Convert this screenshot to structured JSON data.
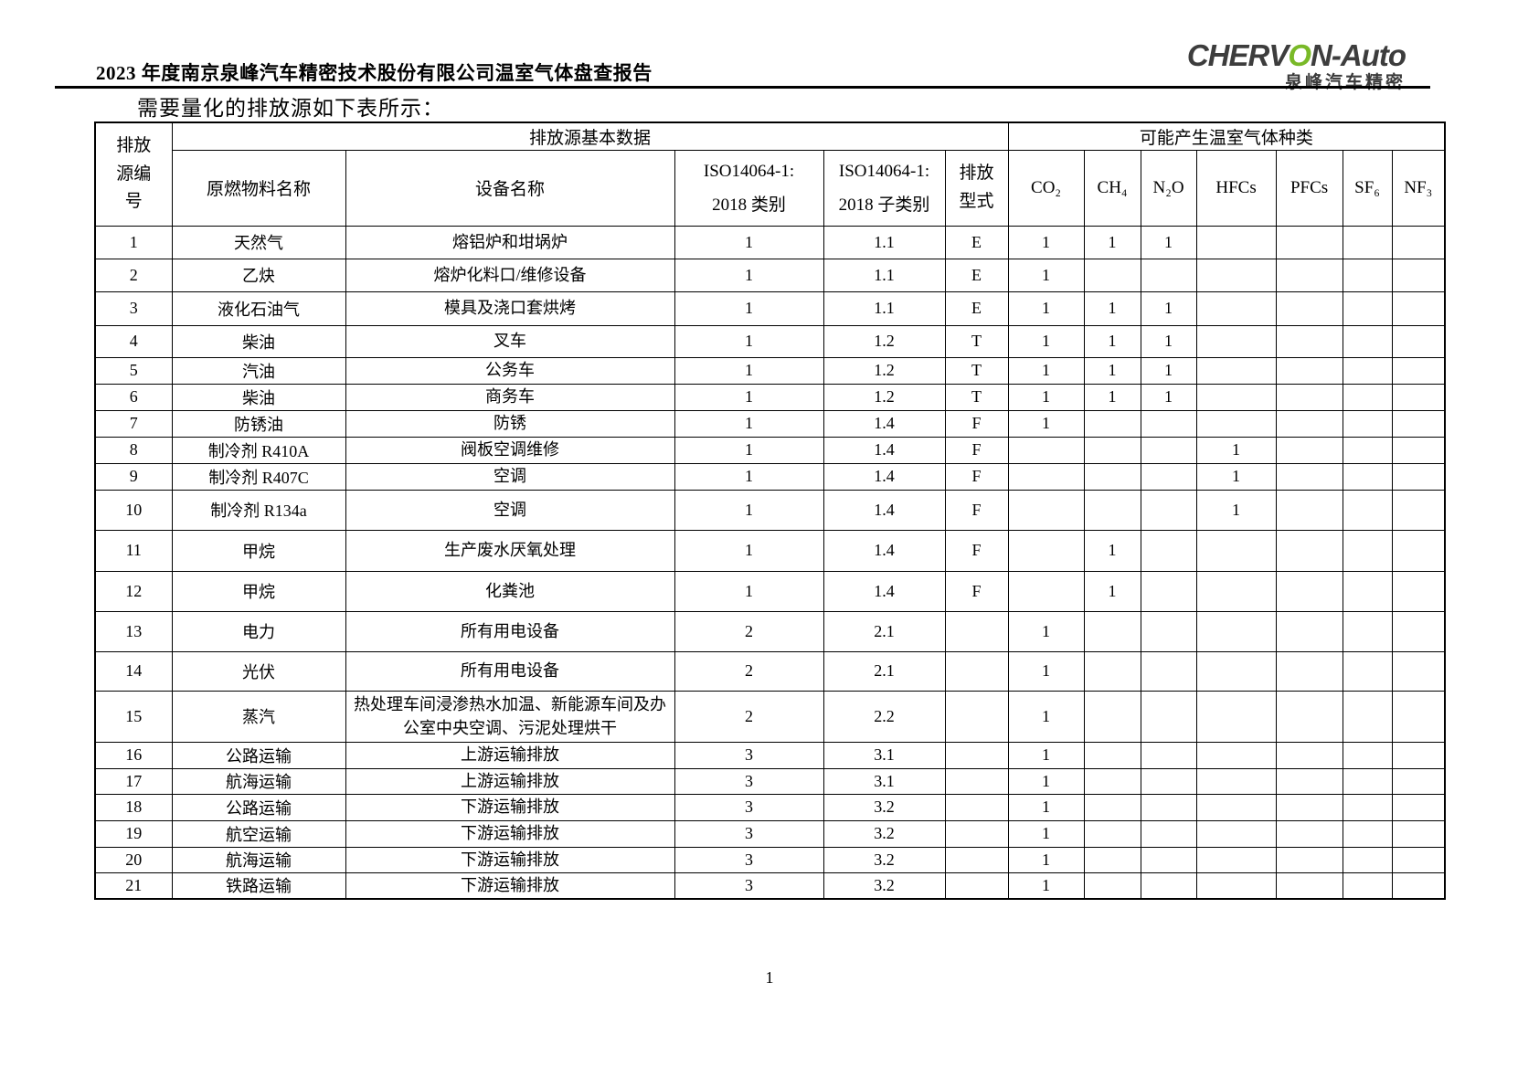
{
  "page": {
    "report_title": "2023 年度南京泉峰汽车精密技术股份有限公司温室气体盘查报告",
    "section_heading": "需要量化的排放源如下表所示：",
    "page_number": "1"
  },
  "logo": {
    "brand_pre": "CHERV",
    "brand_o": "O",
    "brand_post": "N-Auto",
    "subtitle": "泉峰汽车精密",
    "accent_green": "#79b928",
    "text_color": "#3d3d3d"
  },
  "table": {
    "header": {
      "id": "排放源编号",
      "group_basic": "排放源基本数据",
      "group_gases": "可能产生温室气体种类",
      "material": "原燃物料名称",
      "equipment": "设备名称",
      "category_line1": "ISO14064-1:",
      "category_line2": "2018 类别",
      "subcategory_line1": "ISO14064-1:",
      "subcategory_line2": "2018 子类别",
      "emission_type": "排放型式",
      "gases": [
        "CO₂",
        "CH₄",
        "N₂O",
        "HFCs",
        "PFCs",
        "SF₆",
        "NF₃"
      ]
    },
    "rows": [
      [
        "1",
        "天然气",
        "熔铝炉和坩埚炉",
        "1",
        "1.1",
        "E",
        "1",
        "1",
        "1",
        "",
        "",
        "",
        ""
      ],
      [
        "2",
        "乙炔",
        "熔炉化料口/维修设备",
        "1",
        "1.1",
        "E",
        "1",
        "",
        "",
        "",
        "",
        "",
        ""
      ],
      [
        "3",
        "液化石油气",
        "模具及浇口套烘烤",
        "1",
        "1.1",
        "E",
        "1",
        "1",
        "1",
        "",
        "",
        "",
        ""
      ],
      [
        "4",
        "柴油",
        "叉车",
        "1",
        "1.2",
        "T",
        "1",
        "1",
        "1",
        "",
        "",
        "",
        ""
      ],
      [
        "5",
        "汽油",
        "公务车",
        "1",
        "1.2",
        "T",
        "1",
        "1",
        "1",
        "",
        "",
        "",
        ""
      ],
      [
        "6",
        "柴油",
        "商务车",
        "1",
        "1.2",
        "T",
        "1",
        "1",
        "1",
        "",
        "",
        "",
        ""
      ],
      [
        "7",
        "防锈油",
        "防锈",
        "1",
        "1.4",
        "F",
        "1",
        "",
        "",
        "",
        "",
        "",
        ""
      ],
      [
        "8",
        "制冷剂 R410A",
        "阀板空调维修",
        "1",
        "1.4",
        "F",
        "",
        "",
        "",
        "1",
        "",
        "",
        ""
      ],
      [
        "9",
        "制冷剂 R407C",
        "空调",
        "1",
        "1.4",
        "F",
        "",
        "",
        "",
        "1",
        "",
        "",
        ""
      ],
      [
        "10",
        "制冷剂 R134a",
        "空调",
        "1",
        "1.4",
        "F",
        "",
        "",
        "",
        "1",
        "",
        "",
        ""
      ],
      [
        "11",
        "甲烷",
        "生产废水厌氧处理",
        "1",
        "1.4",
        "F",
        "",
        "1",
        "",
        "",
        "",
        "",
        ""
      ],
      [
        "12",
        "甲烷",
        "化粪池",
        "1",
        "1.4",
        "F",
        "",
        "1",
        "",
        "",
        "",
        "",
        ""
      ],
      [
        "13",
        "电力",
        "所有用电设备",
        "2",
        "2.1",
        "",
        "1",
        "",
        "",
        "",
        "",
        "",
        ""
      ],
      [
        "14",
        "光伏",
        "所有用电设备",
        "2",
        "2.1",
        "",
        "1",
        "",
        "",
        "",
        "",
        "",
        ""
      ],
      [
        "15",
        "蒸汽",
        "热处理车间浸渗热水加温、新能源车间及办公室中央空调、污泥处理烘干",
        "2",
        "2.2",
        "",
        "1",
        "",
        "",
        "",
        "",
        "",
        ""
      ],
      [
        "16",
        "公路运输",
        "上游运输排放",
        "3",
        "3.1",
        "",
        "1",
        "",
        "",
        "",
        "",
        "",
        ""
      ],
      [
        "17",
        "航海运输",
        "上游运输排放",
        "3",
        "3.1",
        "",
        "1",
        "",
        "",
        "",
        "",
        "",
        ""
      ],
      [
        "18",
        "公路运输",
        "下游运输排放",
        "3",
        "3.2",
        "",
        "1",
        "",
        "",
        "",
        "",
        "",
        ""
      ],
      [
        "19",
        "航空运输",
        "下游运输排放",
        "3",
        "3.2",
        "",
        "1",
        "",
        "",
        "",
        "",
        "",
        ""
      ],
      [
        "20",
        "航海运输",
        "下游运输排放",
        "3",
        "3.2",
        "",
        "1",
        "",
        "",
        "",
        "",
        "",
        ""
      ],
      [
        "21",
        "铁路运输",
        "下游运输排放",
        "3",
        "3.2",
        "",
        "1",
        "",
        "",
        "",
        "",
        "",
        ""
      ]
    ]
  }
}
